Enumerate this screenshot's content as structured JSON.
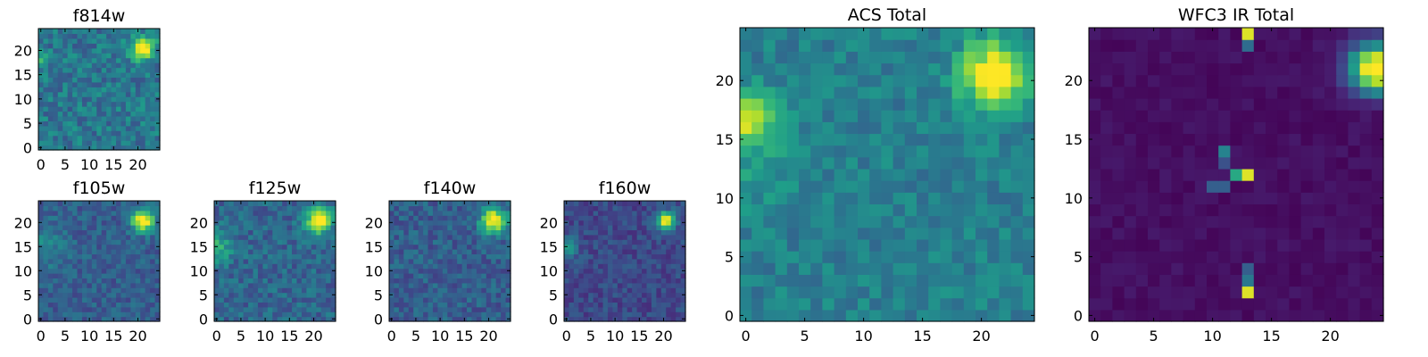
{
  "figure": {
    "type": "heatmap-grid",
    "colormap": "viridis",
    "grid_size": 25
  },
  "chart_data": [
    {
      "type": "heatmap",
      "title": "f814w",
      "xlim": [
        -0.5,
        24.5
      ],
      "ylim": [
        -0.5,
        24.5
      ],
      "xticks": [
        0,
        5,
        10,
        15,
        20
      ],
      "yticks": [
        0,
        5,
        10,
        15,
        20
      ],
      "background_level": 0.4,
      "noise": 0.14,
      "seed": 11,
      "blobs": [
        {
          "x": 21,
          "y": 20.5,
          "r": 1.6,
          "amp": 0.75
        },
        {
          "x": 0,
          "y": 18,
          "r": 1.0,
          "amp": 0.42
        }
      ]
    },
    {
      "type": "heatmap",
      "title": "f105w",
      "xlim": [
        -0.5,
        24.5
      ],
      "ylim": [
        -0.5,
        24.5
      ],
      "xticks": [
        0,
        5,
        10,
        15,
        20
      ],
      "yticks": [
        0,
        5,
        10,
        15,
        20
      ],
      "background_level": 0.3,
      "noise": 0.1,
      "seed": 23,
      "blobs": [
        {
          "x": 21,
          "y": 20.5,
          "r": 1.6,
          "amp": 0.8
        },
        {
          "x": 0,
          "y": 15,
          "r": 3.5,
          "amp": 0.15
        }
      ]
    },
    {
      "type": "heatmap",
      "title": "f125w",
      "xlim": [
        -0.5,
        24.5
      ],
      "ylim": [
        -0.5,
        24.5
      ],
      "xticks": [
        0,
        5,
        10,
        15,
        20
      ],
      "yticks": [
        0,
        5,
        10,
        15,
        20
      ],
      "background_level": 0.33,
      "noise": 0.12,
      "seed": 37,
      "blobs": [
        {
          "x": 21,
          "y": 20.5,
          "r": 1.8,
          "amp": 0.75
        },
        {
          "x": 0,
          "y": 15,
          "r": 2.5,
          "amp": 0.28
        }
      ]
    },
    {
      "type": "heatmap",
      "title": "f140w",
      "xlim": [
        -0.5,
        24.5
      ],
      "ylim": [
        -0.5,
        24.5
      ],
      "xticks": [
        0,
        5,
        10,
        15,
        20
      ],
      "yticks": [
        0,
        5,
        10,
        15,
        20
      ],
      "background_level": 0.3,
      "noise": 0.11,
      "seed": 51,
      "blobs": [
        {
          "x": 21,
          "y": 20.5,
          "r": 1.8,
          "amp": 0.78
        }
      ]
    },
    {
      "type": "heatmap",
      "title": "f160w",
      "xlim": [
        -0.5,
        24.5
      ],
      "ylim": [
        -0.5,
        24.5
      ],
      "xticks": [
        0,
        5,
        10,
        15,
        20
      ],
      "yticks": [
        0,
        5,
        10,
        15,
        20
      ],
      "background_level": 0.22,
      "noise": 0.09,
      "seed": 67,
      "blobs": [
        {
          "x": 20.5,
          "y": 20.5,
          "r": 1.3,
          "amp": 0.85
        },
        {
          "x": 0,
          "y": 15,
          "r": 1.5,
          "amp": 0.35
        }
      ]
    },
    {
      "type": "heatmap",
      "title": "ACS Total",
      "xlim": [
        -0.5,
        24.5
      ],
      "ylim": [
        -0.5,
        24.5
      ],
      "xticks": [
        0,
        5,
        10,
        15,
        20
      ],
      "yticks": [
        0,
        5,
        10,
        15,
        20
      ],
      "background_level": 0.43,
      "noise": 0.1,
      "seed": 83,
      "blobs": [
        {
          "x": 21,
          "y": 20.5,
          "r": 2.0,
          "amp": 0.62
        },
        {
          "x": 0,
          "y": 17,
          "r": 1.4,
          "amp": 0.45
        },
        {
          "x": 0,
          "y": 14,
          "r": 3.0,
          "amp": 0.12
        }
      ]
    },
    {
      "type": "heatmap",
      "title": "WFC3 IR Total",
      "xlim": [
        -0.5,
        24.5
      ],
      "ylim": [
        -0.5,
        24.5
      ],
      "xticks": [
        0,
        5,
        10,
        15,
        20
      ],
      "yticks": [
        0,
        5,
        10,
        15,
        20
      ],
      "background_level": 0.04,
      "noise": 0.03,
      "seed": 97,
      "blobs": [
        {
          "x": 24,
          "y": 21,
          "r": 1.4,
          "amp": 1.0
        },
        {
          "x": 22.5,
          "y": 21.5,
          "r": 1.5,
          "amp": 0.18
        }
      ],
      "hot_pixels": [
        {
          "x": 13,
          "y": 24,
          "value": 0.95
        },
        {
          "x": 13,
          "y": 23,
          "value": 0.35
        },
        {
          "x": 11,
          "y": 14,
          "value": 0.45
        },
        {
          "x": 11,
          "y": 13,
          "value": 0.25
        },
        {
          "x": 10,
          "y": 11,
          "value": 0.3
        },
        {
          "x": 11,
          "y": 11,
          "value": 0.3
        },
        {
          "x": 12,
          "y": 12,
          "value": 0.6
        },
        {
          "x": 13,
          "y": 12,
          "value": 0.95
        },
        {
          "x": 13,
          "y": 4,
          "value": 0.3
        },
        {
          "x": 13,
          "y": 3,
          "value": 0.4
        },
        {
          "x": 13,
          "y": 2,
          "value": 0.95
        }
      ]
    }
  ]
}
